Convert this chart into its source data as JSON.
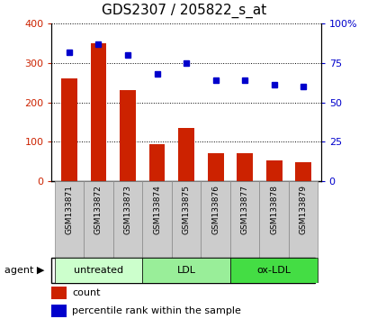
{
  "title": "GDS2307 / 205822_s_at",
  "samples": [
    "GSM133871",
    "GSM133872",
    "GSM133873",
    "GSM133874",
    "GSM133875",
    "GSM133876",
    "GSM133877",
    "GSM133878",
    "GSM133879"
  ],
  "counts": [
    260,
    350,
    230,
    93,
    135,
    72,
    72,
    53,
    47
  ],
  "percentiles": [
    82,
    87,
    80,
    68,
    75,
    64,
    64,
    61,
    60
  ],
  "bar_color": "#cc2200",
  "dot_color": "#0000cc",
  "ylim_left": [
    0,
    400
  ],
  "ylim_right": [
    0,
    100
  ],
  "yticks_left": [
    0,
    100,
    200,
    300,
    400
  ],
  "yticks_right": [
    0,
    25,
    50,
    75,
    100
  ],
  "yticklabels_right": [
    "0",
    "25",
    "50",
    "75",
    "100%"
  ],
  "groups": [
    {
      "label": "untreated",
      "indices": [
        0,
        1,
        2
      ],
      "color": "#ccffcc"
    },
    {
      "label": "LDL",
      "indices": [
        3,
        4,
        5
      ],
      "color": "#99ee99"
    },
    {
      "label": "ox-LDL",
      "indices": [
        6,
        7,
        8
      ],
      "color": "#44dd44"
    }
  ],
  "agent_label": "agent",
  "legend_count_label": "count",
  "legend_pct_label": "percentile rank within the sample",
  "background_color": "#ffffff",
  "tick_label_color_left": "#cc2200",
  "tick_label_color_right": "#0000cc",
  "title_fontsize": 11,
  "axis_fontsize": 8,
  "sample_fontsize": 6.5,
  "legend_fontsize": 8,
  "bar_width": 0.55,
  "gray_box_color": "#cccccc",
  "gray_box_edge": "#888888"
}
